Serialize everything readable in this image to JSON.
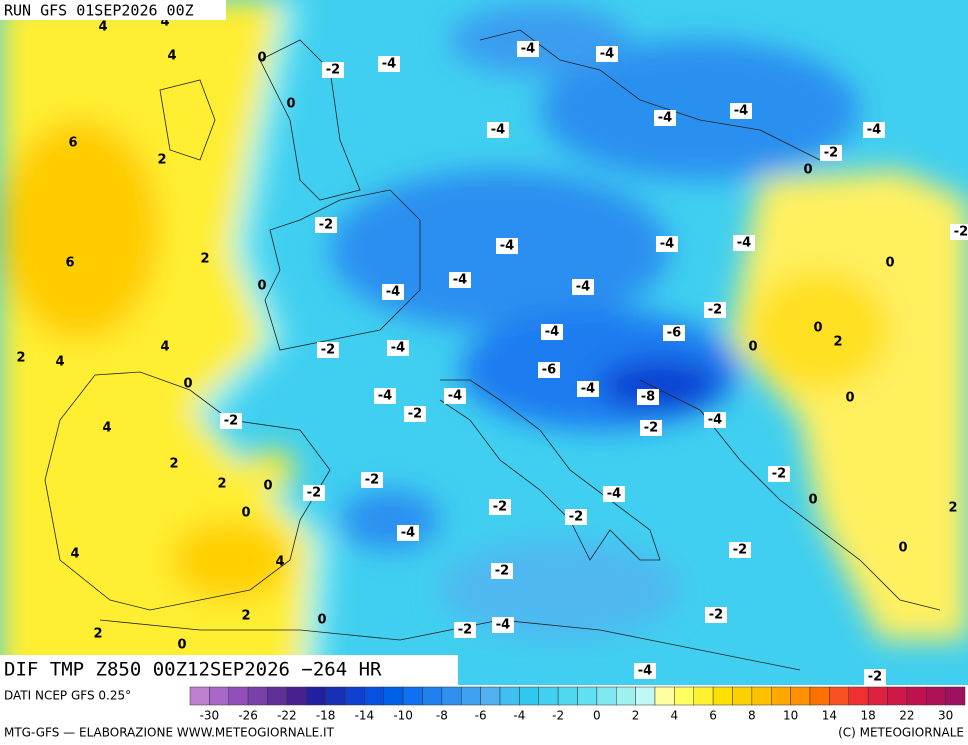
{
  "header": {
    "run": "RUN GFS 01SEP2026 00Z"
  },
  "map": {
    "contour_labels": [
      4,
      4,
      4,
      0,
      -2,
      -4,
      -4,
      -4,
      0,
      -4,
      -4,
      -4,
      -4,
      6,
      2,
      -2,
      0,
      -2,
      -4,
      -4,
      -4,
      6,
      2,
      0,
      -4,
      -4,
      -4,
      -2,
      0,
      0,
      -4,
      -6,
      2,
      0,
      -2,
      -4,
      4,
      2,
      4,
      0,
      -6,
      -4,
      -8,
      0,
      -4,
      -4,
      -2,
      -2,
      4,
      -2,
      -4,
      2,
      -2,
      2,
      0,
      -2,
      -2,
      -4,
      0,
      0,
      -2,
      -2,
      2,
      -4,
      -2,
      0,
      4,
      4,
      -2,
      2,
      0,
      -2,
      -2,
      -4,
      2,
      0,
      -4,
      -2,
      -2
    ]
  },
  "footer": {
    "title": "DIF TMP Z850 00Z12SEP2026 −264 HR",
    "source": "DATI NCEP GFS 0.25°",
    "credit": "MTG-GFS — ELABORAZIONE WWW.METEOGIORNALE.IT",
    "copyright": "(C) METEOGIORNALE"
  },
  "colorbar": {
    "labels": [
      -30,
      -26,
      -22,
      -18,
      -14,
      -10,
      -8,
      -6,
      -4,
      -2,
      0,
      2,
      4,
      6,
      8,
      10,
      14,
      18,
      22,
      30
    ],
    "colors": [
      "#c080d0",
      "#a868c8",
      "#9050b8",
      "#7840a8",
      "#603098",
      "#4a2090",
      "#2020a0",
      "#1830b8",
      "#1040d0",
      "#0850e0",
      "#0060e8",
      "#1070f0",
      "#2080f0",
      "#3090f0",
      "#40a0f0",
      "#50b0f0",
      "#40c0f0",
      "#30c8f0",
      "#40d0f0",
      "#50d8f0",
      "#60e0f0",
      "#80e8f0",
      "#a0f0f0",
      "#c0f8f8",
      "#ffffa0",
      "#ffff60",
      "#fff030",
      "#ffe000",
      "#ffd000",
      "#ffc000",
      "#ffa800",
      "#ff9000",
      "#ff7000",
      "#f85020",
      "#f03030",
      "#e02040",
      "#d01848",
      "#c01050",
      "#b01058",
      "#a01060"
    ]
  }
}
